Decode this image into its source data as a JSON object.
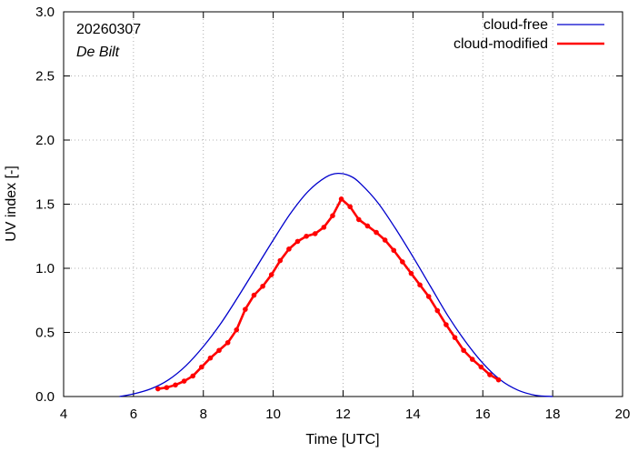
{
  "chart_data": {
    "type": "line",
    "xlabel": "Time  [UTC]",
    "ylabel": "UV index  [-]",
    "xlim": [
      4,
      20
    ],
    "ylim": [
      0,
      3
    ],
    "xticks": [
      4,
      6,
      8,
      10,
      12,
      14,
      16,
      18,
      20
    ],
    "yticks": [
      0.0,
      0.5,
      1.0,
      1.5,
      2.0,
      2.5,
      3.0
    ],
    "xtick_labels": [
      "4",
      "6",
      "8",
      "10",
      "12",
      "14",
      "16",
      "18",
      "20"
    ],
    "ytick_labels": [
      "0.0",
      "0.5",
      "1.0",
      "1.5",
      "2.0",
      "2.5",
      "3.0"
    ],
    "annotations": {
      "date": "20260307",
      "station": "De Bilt"
    },
    "legend_position": "top-right",
    "series": [
      {
        "name": "cloud-free",
        "color": "#0000cc",
        "markers": false,
        "x": [
          5.6,
          6.0,
          6.5,
          7.0,
          7.5,
          8.0,
          8.5,
          9.0,
          9.5,
          10.0,
          10.5,
          11.0,
          11.5,
          11.85,
          12.2,
          12.5,
          13.0,
          13.5,
          14.0,
          14.5,
          15.0,
          15.5,
          16.0,
          16.5,
          17.0,
          17.5,
          18.0
        ],
        "y": [
          0.0,
          0.02,
          0.06,
          0.13,
          0.24,
          0.39,
          0.57,
          0.78,
          1.0,
          1.22,
          1.43,
          1.6,
          1.71,
          1.74,
          1.72,
          1.66,
          1.51,
          1.31,
          1.09,
          0.86,
          0.63,
          0.43,
          0.26,
          0.13,
          0.05,
          0.01,
          0.0
        ]
      },
      {
        "name": "cloud-modified",
        "color": "#ff0000",
        "markers": true,
        "x": [
          6.7,
          6.95,
          7.2,
          7.45,
          7.7,
          7.95,
          8.2,
          8.45,
          8.7,
          8.95,
          9.2,
          9.45,
          9.7,
          9.95,
          10.2,
          10.45,
          10.7,
          10.95,
          11.2,
          11.45,
          11.7,
          11.95,
          12.2,
          12.45,
          12.7,
          12.95,
          13.2,
          13.45,
          13.7,
          13.95,
          14.2,
          14.45,
          14.7,
          14.95,
          15.2,
          15.45,
          15.7,
          15.95,
          16.2,
          16.45
        ],
        "y": [
          0.06,
          0.07,
          0.09,
          0.12,
          0.16,
          0.23,
          0.3,
          0.36,
          0.42,
          0.52,
          0.68,
          0.79,
          0.86,
          0.95,
          1.06,
          1.15,
          1.21,
          1.25,
          1.27,
          1.32,
          1.41,
          1.54,
          1.48,
          1.38,
          1.33,
          1.28,
          1.22,
          1.14,
          1.05,
          0.96,
          0.87,
          0.78,
          0.67,
          0.56,
          0.46,
          0.36,
          0.29,
          0.23,
          0.17,
          0.13
        ]
      }
    ]
  }
}
